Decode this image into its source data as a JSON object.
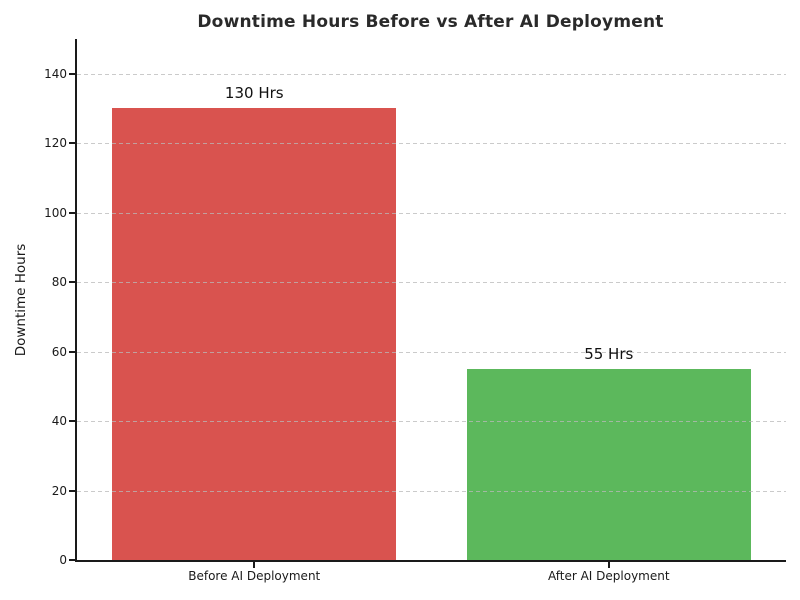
{
  "figure": {
    "background": "#ffffff"
  },
  "chart_data": {
    "type": "bar",
    "title": "Downtime Hours Before vs After AI Deployment",
    "xlabel": "",
    "ylabel": "Downtime Hours",
    "categories": [
      "Before AI Deployment",
      "After AI Deployment"
    ],
    "values": [
      130,
      55
    ],
    "bar_labels": [
      "130 Hrs",
      "55 Hrs"
    ],
    "bar_colors": [
      "#d9534f",
      "#5cb85c"
    ],
    "ylim": [
      0,
      150
    ],
    "yticks": [
      0,
      20,
      40,
      60,
      80,
      100,
      120,
      140
    ],
    "bar_width_fraction": 0.8,
    "grid": "horizontal dashed, drawn above bars",
    "legend": "none"
  },
  "colors": {
    "axis": "#1a1a1a",
    "grid": "#b9b9b9",
    "title_text": "#2a2a2a",
    "tick_text": "#1a1a1a",
    "value_label_text": "#111111"
  }
}
